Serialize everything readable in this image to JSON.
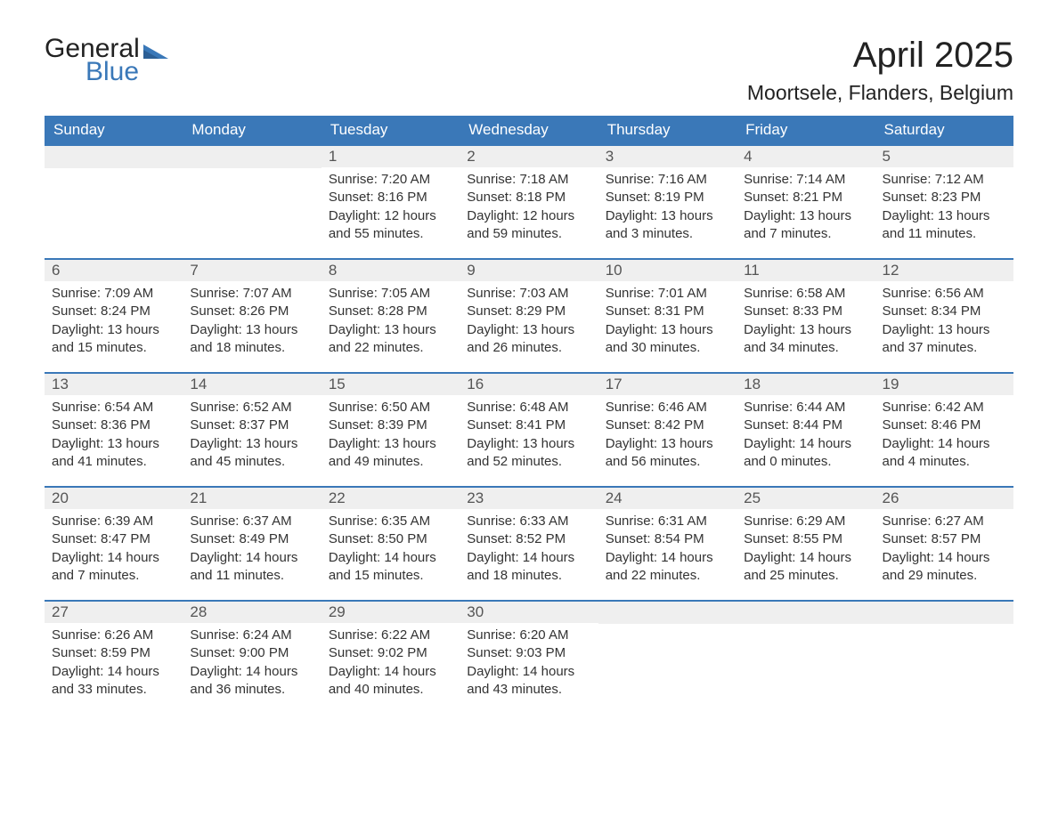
{
  "logo": {
    "text1": "General",
    "text2": "Blue"
  },
  "title": "April 2025",
  "location": "Moortsele, Flanders, Belgium",
  "colors": {
    "header_bg": "#3a78b8",
    "header_text": "#ffffff",
    "dayhead_bg": "#efefef",
    "dayhead_border": "#3a78b8",
    "body_text": "#333333",
    "page_bg": "#ffffff"
  },
  "weekdays": [
    "Sunday",
    "Monday",
    "Tuesday",
    "Wednesday",
    "Thursday",
    "Friday",
    "Saturday"
  ],
  "first_weekday_index": 2,
  "days": [
    {
      "n": 1,
      "sunrise": "7:20 AM",
      "sunset": "8:16 PM",
      "daylight": "12 hours and 55 minutes."
    },
    {
      "n": 2,
      "sunrise": "7:18 AM",
      "sunset": "8:18 PM",
      "daylight": "12 hours and 59 minutes."
    },
    {
      "n": 3,
      "sunrise": "7:16 AM",
      "sunset": "8:19 PM",
      "daylight": "13 hours and 3 minutes."
    },
    {
      "n": 4,
      "sunrise": "7:14 AM",
      "sunset": "8:21 PM",
      "daylight": "13 hours and 7 minutes."
    },
    {
      "n": 5,
      "sunrise": "7:12 AM",
      "sunset": "8:23 PM",
      "daylight": "13 hours and 11 minutes."
    },
    {
      "n": 6,
      "sunrise": "7:09 AM",
      "sunset": "8:24 PM",
      "daylight": "13 hours and 15 minutes."
    },
    {
      "n": 7,
      "sunrise": "7:07 AM",
      "sunset": "8:26 PM",
      "daylight": "13 hours and 18 minutes."
    },
    {
      "n": 8,
      "sunrise": "7:05 AM",
      "sunset": "8:28 PM",
      "daylight": "13 hours and 22 minutes."
    },
    {
      "n": 9,
      "sunrise": "7:03 AM",
      "sunset": "8:29 PM",
      "daylight": "13 hours and 26 minutes."
    },
    {
      "n": 10,
      "sunrise": "7:01 AM",
      "sunset": "8:31 PM",
      "daylight": "13 hours and 30 minutes."
    },
    {
      "n": 11,
      "sunrise": "6:58 AM",
      "sunset": "8:33 PM",
      "daylight": "13 hours and 34 minutes."
    },
    {
      "n": 12,
      "sunrise": "6:56 AM",
      "sunset": "8:34 PM",
      "daylight": "13 hours and 37 minutes."
    },
    {
      "n": 13,
      "sunrise": "6:54 AM",
      "sunset": "8:36 PM",
      "daylight": "13 hours and 41 minutes."
    },
    {
      "n": 14,
      "sunrise": "6:52 AM",
      "sunset": "8:37 PM",
      "daylight": "13 hours and 45 minutes."
    },
    {
      "n": 15,
      "sunrise": "6:50 AM",
      "sunset": "8:39 PM",
      "daylight": "13 hours and 49 minutes."
    },
    {
      "n": 16,
      "sunrise": "6:48 AM",
      "sunset": "8:41 PM",
      "daylight": "13 hours and 52 minutes."
    },
    {
      "n": 17,
      "sunrise": "6:46 AM",
      "sunset": "8:42 PM",
      "daylight": "13 hours and 56 minutes."
    },
    {
      "n": 18,
      "sunrise": "6:44 AM",
      "sunset": "8:44 PM",
      "daylight": "14 hours and 0 minutes."
    },
    {
      "n": 19,
      "sunrise": "6:42 AM",
      "sunset": "8:46 PM",
      "daylight": "14 hours and 4 minutes."
    },
    {
      "n": 20,
      "sunrise": "6:39 AM",
      "sunset": "8:47 PM",
      "daylight": "14 hours and 7 minutes."
    },
    {
      "n": 21,
      "sunrise": "6:37 AM",
      "sunset": "8:49 PM",
      "daylight": "14 hours and 11 minutes."
    },
    {
      "n": 22,
      "sunrise": "6:35 AM",
      "sunset": "8:50 PM",
      "daylight": "14 hours and 15 minutes."
    },
    {
      "n": 23,
      "sunrise": "6:33 AM",
      "sunset": "8:52 PM",
      "daylight": "14 hours and 18 minutes."
    },
    {
      "n": 24,
      "sunrise": "6:31 AM",
      "sunset": "8:54 PM",
      "daylight": "14 hours and 22 minutes."
    },
    {
      "n": 25,
      "sunrise": "6:29 AM",
      "sunset": "8:55 PM",
      "daylight": "14 hours and 25 minutes."
    },
    {
      "n": 26,
      "sunrise": "6:27 AM",
      "sunset": "8:57 PM",
      "daylight": "14 hours and 29 minutes."
    },
    {
      "n": 27,
      "sunrise": "6:26 AM",
      "sunset": "8:59 PM",
      "daylight": "14 hours and 33 minutes."
    },
    {
      "n": 28,
      "sunrise": "6:24 AM",
      "sunset": "9:00 PM",
      "daylight": "14 hours and 36 minutes."
    },
    {
      "n": 29,
      "sunrise": "6:22 AM",
      "sunset": "9:02 PM",
      "daylight": "14 hours and 40 minutes."
    },
    {
      "n": 30,
      "sunrise": "6:20 AM",
      "sunset": "9:03 PM",
      "daylight": "14 hours and 43 minutes."
    }
  ],
  "labels": {
    "sunrise": "Sunrise:",
    "sunset": "Sunset:",
    "daylight": "Daylight:"
  }
}
